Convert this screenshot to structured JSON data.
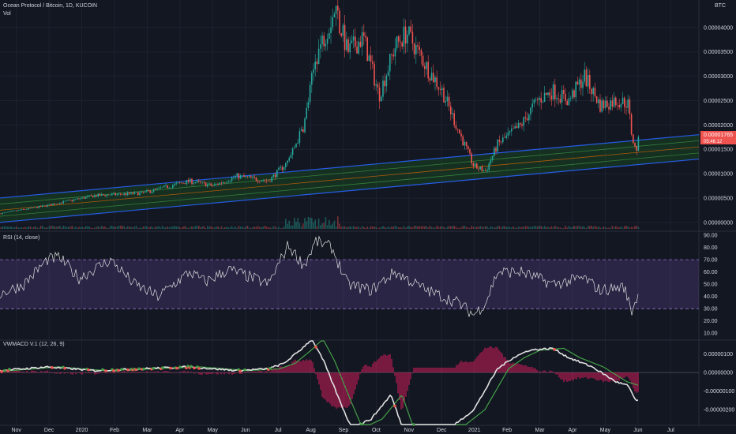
{
  "header": {
    "symbol": "Ocean Protocol / Bitcoin, 1D, KUCOIN",
    "volume_label": "Vol",
    "currency": "BTC"
  },
  "price_tag": {
    "value": "0.00001765",
    "countdown": "05:46:12"
  },
  "colors": {
    "background": "#131722",
    "grid": "#1e2230",
    "up": "#26a69a",
    "down": "#ef5350",
    "channel_line": "#2962ff",
    "channel_fill": "#1b5e20",
    "rsi_line": "#e0e0e0",
    "rsi_band": "#7e57c2",
    "macd_line": "#e0e0e0",
    "signal_line": "#43a047",
    "histogram": "#e91e63",
    "price_tag": "#ef5350"
  },
  "chart_data": [
    {
      "type": "line",
      "title": "Ocean Protocol / Bitcoin, 1D, KUCOIN",
      "panel": "price",
      "style": "candlestick",
      "y_ticks": [
        "0.00004000",
        "0.00003500",
        "0.00003000",
        "0.00002500",
        "0.00002000",
        "0.00001500",
        "0.00001000",
        "0.00000500",
        "0.00000000"
      ],
      "ylim": [
        -1e-06,
        4.5e-05
      ],
      "x_labels": [
        "Nov",
        "Dec",
        "2020",
        "Feb",
        "Mar",
        "Apr",
        "May",
        "Jun",
        "Jul",
        "Aug",
        "Sep",
        "Oct",
        "Nov",
        "Dec",
        "2021",
        "Feb",
        "Mar",
        "Apr",
        "May",
        "Jun",
        "Jul"
      ],
      "price_anchors": [
        [
          0,
          1.8e-06
        ],
        [
          60,
          3.5e-06
        ],
        [
          120,
          5.5e-06
        ],
        [
          180,
          6e-06
        ],
        [
          240,
          8.5e-06
        ],
        [
          270,
          7.5e-06
        ],
        [
          300,
          9.5e-06
        ],
        [
          340,
          8.5e-06
        ],
        [
          365,
          1.25e-05
        ],
        [
          385,
          2e-05
        ],
        [
          400,
          3.4e-05
        ],
        [
          415,
          4e-05
        ],
        [
          425,
          4.4e-05
        ],
        [
          440,
          3.5e-05
        ],
        [
          460,
          3.8e-05
        ],
        [
          480,
          2.6e-05
        ],
        [
          500,
          3.6e-05
        ],
        [
          515,
          3.9e-05
        ],
        [
          540,
          3.2e-05
        ],
        [
          560,
          2.7e-05
        ],
        [
          580,
          1.9e-05
        ],
        [
          600,
          1.15e-05
        ],
        [
          615,
          1.05e-05
        ],
        [
          630,
          1.6e-05
        ],
        [
          660,
          2e-05
        ],
        [
          680,
          2.5e-05
        ],
        [
          700,
          2.7e-05
        ],
        [
          720,
          2.5e-05
        ],
        [
          740,
          3e-05
        ],
        [
          760,
          2.4e-05
        ],
        [
          780,
          2.5e-05
        ],
        [
          795,
          2.45e-05
        ],
        [
          800,
          1.8e-05
        ],
        [
          805,
          1.45e-05
        ],
        [
          810,
          1.76e-05
        ]
      ],
      "channel": {
        "center": [
          [
            0,
            2.5e-06
          ],
          [
            885,
            1.55e-05
          ]
        ],
        "offsets": [
          -2.5e-06,
          -1.25e-06,
          0,
          1.25e-06,
          2.5e-06
        ]
      },
      "last_value": 1.765e-05,
      "grid": true
    },
    {
      "type": "line",
      "title": "RSI (14, close)",
      "panel": "rsi",
      "y_ticks": [
        "90.00",
        "80.00",
        "70.00",
        "60.00",
        "50.00",
        "40.00",
        "30.00",
        "20.00",
        "10.00"
      ],
      "ylim": [
        5,
        92
      ],
      "band": [
        30,
        70
      ],
      "anchors": [
        [
          0,
          42
        ],
        [
          30,
          50
        ],
        [
          60,
          70
        ],
        [
          75,
          72
        ],
        [
          100,
          55
        ],
        [
          140,
          70
        ],
        [
          170,
          50
        ],
        [
          200,
          40
        ],
        [
          240,
          60
        ],
        [
          260,
          52
        ],
        [
          290,
          62
        ],
        [
          320,
          55
        ],
        [
          340,
          50
        ],
        [
          365,
          82
        ],
        [
          385,
          65
        ],
        [
          400,
          85
        ],
        [
          420,
          80
        ],
        [
          440,
          50
        ],
        [
          470,
          45
        ],
        [
          500,
          60
        ],
        [
          540,
          45
        ],
        [
          580,
          35
        ],
        [
          600,
          25
        ],
        [
          615,
          35
        ],
        [
          630,
          60
        ],
        [
          660,
          60
        ],
        [
          700,
          50
        ],
        [
          740,
          55
        ],
        [
          760,
          45
        ],
        [
          790,
          48
        ],
        [
          800,
          28
        ],
        [
          808,
          42
        ]
      ],
      "grid": true
    },
    {
      "type": "bar",
      "title": "VWMACD V.1 (12, 26, 9)",
      "panel": "macd",
      "y_ticks": [
        "0.00000100",
        "0.00000000",
        "-0.00000100",
        "-0.00000200"
      ],
      "ylim": [
        -2.8e-06,
        1.7e-06
      ],
      "series": [
        {
          "name": "",
          "role": "macd",
          "anchors": [
            [
              0,
              1e-07
            ],
            [
              60,
              3e-07
            ],
            [
              120,
              1e-07
            ],
            [
              180,
              2e-07
            ],
            [
              240,
              3e-07
            ],
            [
              300,
              1e-07
            ],
            [
              340,
              2e-07
            ],
            [
              360,
              5e-07
            ],
            [
              380,
              1.2e-06
            ],
            [
              395,
              1.8e-06
            ],
            [
              410,
              6e-07
            ],
            [
              430,
              -1.5e-06
            ],
            [
              445,
              -3e-06
            ],
            [
              470,
              -2.5e-06
            ],
            [
              495,
              -1.2e-06
            ],
            [
              510,
              -3e-06
            ],
            [
              540,
              -3e-06
            ],
            [
              570,
              -3e-06
            ],
            [
              600,
              -2e-06
            ],
            [
              630,
              2e-07
            ],
            [
              650,
              8e-07
            ],
            [
              670,
              1.2e-06
            ],
            [
              700,
              1.3e-06
            ],
            [
              720,
              8e-07
            ],
            [
              750,
              3e-07
            ],
            [
              780,
              -5e-07
            ],
            [
              795,
              -7e-07
            ],
            [
              805,
              -1.5e-06
            ]
          ]
        },
        {
          "name": "",
          "role": "signal",
          "lag": 14
        },
        {
          "name": "",
          "role": "histogram"
        }
      ],
      "grid": true
    }
  ]
}
